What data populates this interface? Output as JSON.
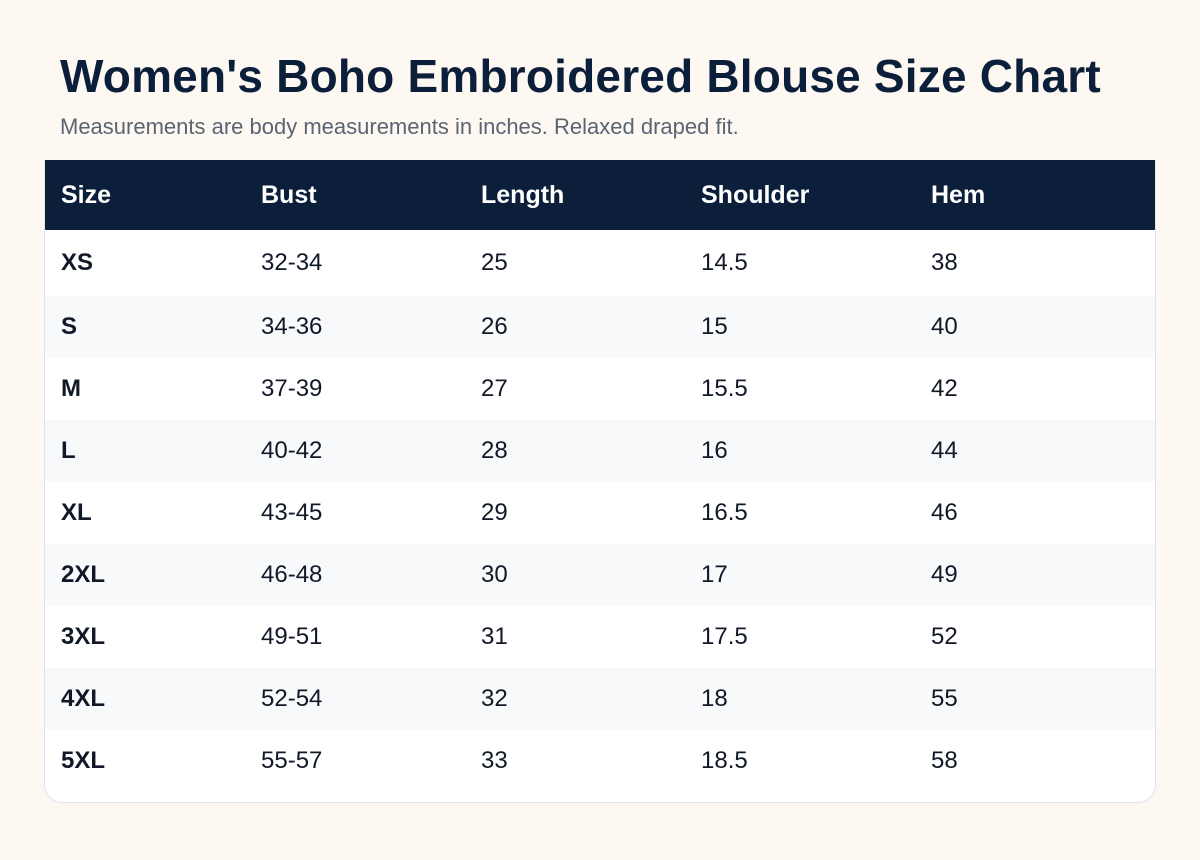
{
  "header": {
    "title": "Women's Boho Embroidered Blouse Size Chart",
    "subtitle": "Measurements are body measurements in inches. Relaxed draped fit."
  },
  "table": {
    "columns": [
      "Size",
      "Bust",
      "Length",
      "Shoulder",
      "Hem"
    ],
    "rows": [
      [
        "XS",
        "32-34",
        "25",
        "14.5",
        "38"
      ],
      [
        "S",
        "34-36",
        "26",
        "15",
        "40"
      ],
      [
        "M",
        "37-39",
        "27",
        "15.5",
        "42"
      ],
      [
        "L",
        "40-42",
        "28",
        "16",
        "44"
      ],
      [
        "XL",
        "43-45",
        "29",
        "16.5",
        "46"
      ],
      [
        "2XL",
        "46-48",
        "30",
        "17",
        "49"
      ],
      [
        "3XL",
        "49-51",
        "31",
        "17.5",
        "52"
      ],
      [
        "4XL",
        "52-54",
        "32",
        "18",
        "55"
      ],
      [
        "5XL",
        "55-57",
        "33",
        "18.5",
        "58"
      ]
    ]
  },
  "colors": {
    "header_bg": "#0b1f3a",
    "page_bg": "#fdf8f2",
    "stripe": "#f7f9fb"
  }
}
